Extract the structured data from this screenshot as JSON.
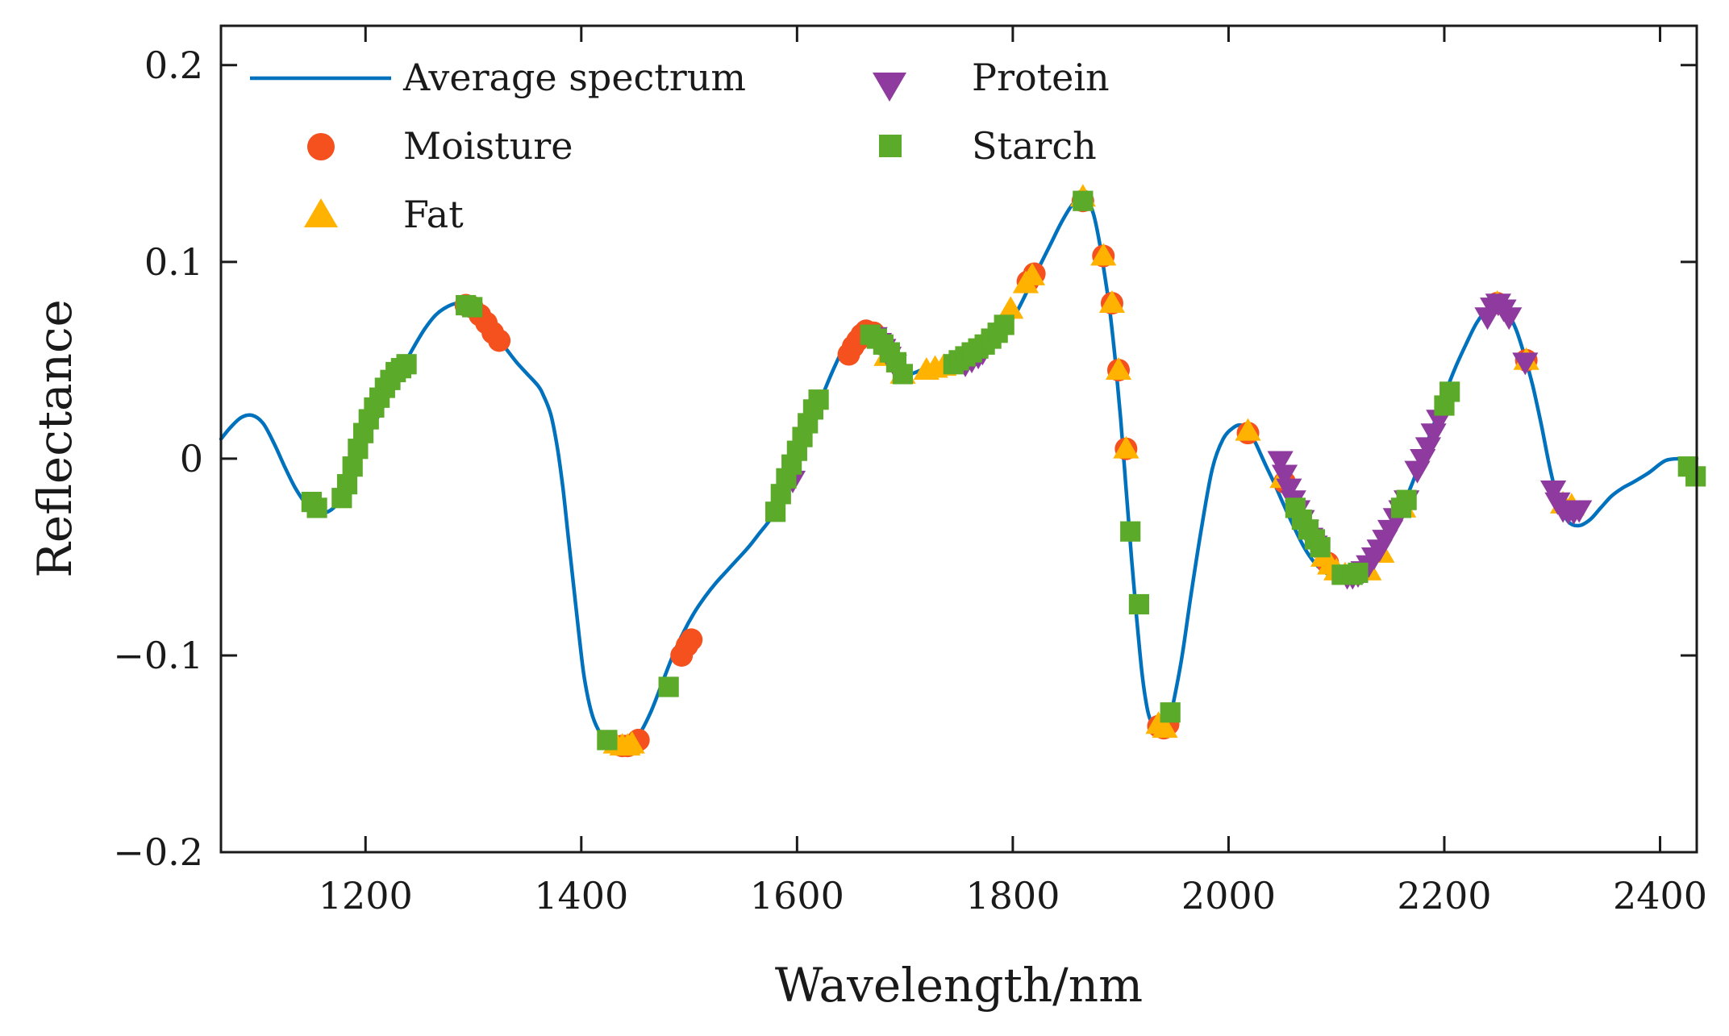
{
  "chart_data": {
    "type": "line+scatter",
    "title": "",
    "xlabel": "Wavelength/nm",
    "ylabel": "Reflectance",
    "xlim": [
      1066,
      2434
    ],
    "ylim": [
      -0.2,
      0.22
    ],
    "xticks": [
      1200,
      1400,
      1600,
      1800,
      2000,
      2200,
      2400
    ],
    "xtick_labels": [
      "1200",
      "1400",
      "1600",
      "1800",
      "2000",
      "2200",
      "2400"
    ],
    "yticks": [
      -0.2,
      -0.1,
      0,
      0.1,
      0.2
    ],
    "ytick_labels": [
      "−0.2",
      "−0.1",
      "0",
      "0.1",
      "0.2"
    ],
    "legend_position": "top-left",
    "series": [
      {
        "name": "Average spectrum",
        "kind": "line",
        "color": "#0072BD",
        "x": [
          1066,
          1075,
          1085,
          1095,
          1105,
          1115,
          1125,
          1135,
          1145,
          1155,
          1165,
          1175,
          1185,
          1195,
          1205,
          1215,
          1225,
          1235,
          1245,
          1255,
          1265,
          1275,
          1285,
          1292,
          1300,
          1310,
          1320,
          1330,
          1340,
          1350,
          1360,
          1365,
          1372,
          1378,
          1383,
          1388,
          1393,
          1398,
          1403,
          1410,
          1418,
          1425,
          1432,
          1440,
          1447,
          1455,
          1465,
          1475,
          1485,
          1495,
          1505,
          1515,
          1525,
          1535,
          1545,
          1555,
          1565,
          1575,
          1585,
          1595,
          1605,
          1615,
          1625,
          1635,
          1645,
          1655,
          1662,
          1668,
          1675,
          1682,
          1690,
          1697,
          1705,
          1715,
          1725,
          1735,
          1745,
          1755,
          1765,
          1775,
          1785,
          1795,
          1805,
          1815,
          1825,
          1835,
          1845,
          1855,
          1862,
          1866,
          1870,
          1875,
          1880,
          1885,
          1890,
          1895,
          1900,
          1905,
          1910,
          1915,
          1920,
          1925,
          1930,
          1935,
          1940,
          1945,
          1950,
          1957,
          1965,
          1975,
          1985,
          1995,
          2005,
          2012,
          2018,
          2025,
          2030,
          2035,
          2042,
          2050,
          2060,
          2070,
          2080,
          2090,
          2100,
          2108,
          2115,
          2122,
          2130,
          2140,
          2150,
          2160,
          2170,
          2180,
          2190,
          2200,
          2210,
          2220,
          2230,
          2240,
          2248,
          2254,
          2260,
          2267,
          2274,
          2282,
          2290,
          2298,
          2306,
          2315,
          2325,
          2335,
          2345,
          2355,
          2365,
          2375,
          2390,
          2405,
          2420,
          2434
        ],
        "y": [
          0.01,
          0.016,
          0.021,
          0.022,
          0.018,
          0.008,
          -0.004,
          -0.015,
          -0.023,
          -0.027,
          -0.027,
          -0.022,
          -0.011,
          0.001,
          0.014,
          0.025,
          0.036,
          0.047,
          0.057,
          0.066,
          0.073,
          0.077,
          0.079,
          0.078,
          0.075,
          0.07,
          0.063,
          0.056,
          0.049,
          0.043,
          0.037,
          0.032,
          0.022,
          0.005,
          -0.015,
          -0.04,
          -0.065,
          -0.09,
          -0.112,
          -0.13,
          -0.14,
          -0.144,
          -0.146,
          -0.146,
          -0.144,
          -0.139,
          -0.128,
          -0.114,
          -0.1,
          -0.088,
          -0.078,
          -0.07,
          -0.063,
          -0.057,
          -0.051,
          -0.045,
          -0.038,
          -0.031,
          -0.022,
          -0.01,
          0.005,
          0.02,
          0.034,
          0.047,
          0.058,
          0.064,
          0.066,
          0.064,
          0.058,
          0.051,
          0.045,
          0.043,
          0.043,
          0.045,
          0.047,
          0.048,
          0.049,
          0.05,
          0.052,
          0.055,
          0.06,
          0.067,
          0.076,
          0.087,
          0.098,
          0.109,
          0.12,
          0.129,
          0.132,
          0.133,
          0.131,
          0.124,
          0.111,
          0.094,
          0.075,
          0.05,
          0.02,
          -0.015,
          -0.05,
          -0.082,
          -0.11,
          -0.128,
          -0.136,
          -0.139,
          -0.138,
          -0.133,
          -0.121,
          -0.1,
          -0.07,
          -0.035,
          -0.005,
          0.01,
          0.016,
          0.017,
          0.014,
          0.008,
          0.002,
          -0.004,
          -0.012,
          -0.022,
          -0.034,
          -0.045,
          -0.053,
          -0.058,
          -0.06,
          -0.06,
          -0.059,
          -0.057,
          -0.053,
          -0.046,
          -0.037,
          -0.026,
          -0.013,
          0.002,
          0.017,
          0.032,
          0.046,
          0.058,
          0.069,
          0.076,
          0.078,
          0.077,
          0.073,
          0.065,
          0.053,
          0.037,
          0.017,
          -0.005,
          -0.022,
          -0.032,
          -0.034,
          -0.031,
          -0.025,
          -0.019,
          -0.015,
          -0.012,
          -0.007,
          -0.001,
          0.0,
          0.0
        ]
      },
      {
        "name": "Moisture",
        "kind": "scatter",
        "marker": "circle",
        "color": "#F4511E",
        "x": [
          1293,
          1299,
          1306,
          1312,
          1318,
          1324,
          1438,
          1443,
          1449,
          1453,
          1493,
          1498,
          1502,
          1648,
          1652,
          1656,
          1660,
          1664,
          1671,
          1814,
          1820,
          1865,
          1884,
          1892,
          1898,
          1905,
          1935,
          1940,
          1944,
          2018,
          2052,
          2092,
          2249,
          2276
        ],
        "y": [
          0.078,
          0.077,
          0.073,
          0.069,
          0.064,
          0.06,
          -0.146,
          -0.146,
          -0.145,
          -0.143,
          -0.1,
          -0.095,
          -0.092,
          0.053,
          0.057,
          0.06,
          0.063,
          0.065,
          0.064,
          0.09,
          0.094,
          0.131,
          0.103,
          0.079,
          0.045,
          0.005,
          -0.136,
          -0.137,
          -0.135,
          0.013,
          -0.012,
          -0.053,
          0.079,
          0.05
        ]
      },
      {
        "name": "Fat",
        "kind": "scatter",
        "marker": "triangle-up",
        "color": "#FFB300",
        "x": [
          1432,
          1438,
          1443,
          1447,
          1683,
          1698,
          1720,
          1728,
          1736,
          1798,
          1812,
          1818,
          1865,
          1884,
          1892,
          1898,
          1905,
          1935,
          1941,
          2018,
          2050,
          2088,
          2094,
          2100,
          2108,
          2130,
          2142,
          2162,
          2249,
          2276,
          2310,
          2318
        ],
        "y": [
          -0.145,
          -0.146,
          -0.146,
          -0.145,
          0.052,
          0.043,
          0.045,
          0.046,
          0.047,
          0.076,
          0.089,
          0.093,
          0.133,
          0.103,
          0.079,
          0.045,
          0.005,
          -0.135,
          -0.137,
          0.014,
          -0.01,
          -0.05,
          -0.054,
          -0.057,
          -0.059,
          -0.057,
          -0.048,
          -0.025,
          0.079,
          0.05,
          -0.023,
          -0.024
        ]
      },
      {
        "name": "Protein",
        "kind": "scatter",
        "marker": "triangle-down",
        "color": "#8E3A9E",
        "x": [
          1596,
          1672,
          1676,
          1680,
          1685,
          1690,
          1756,
          1762,
          1768,
          1772,
          2048,
          2052,
          2056,
          2060,
          2064,
          2068,
          2072,
          2076,
          2080,
          2110,
          2115,
          2120,
          2125,
          2130,
          2135,
          2140,
          2145,
          2150,
          2155,
          2160,
          2165,
          2175,
          2180,
          2185,
          2190,
          2195,
          2240,
          2245,
          2250,
          2255,
          2260,
          2275,
          2301,
          2305,
          2310,
          2315,
          2320,
          2325
        ],
        "y": [
          -0.011,
          0.062,
          0.059,
          0.056,
          0.052,
          0.048,
          0.048,
          0.05,
          0.052,
          0.054,
          -0.001,
          -0.008,
          -0.015,
          -0.021,
          -0.026,
          -0.031,
          -0.036,
          -0.04,
          -0.044,
          -0.06,
          -0.06,
          -0.059,
          -0.057,
          -0.054,
          -0.05,
          -0.046,
          -0.041,
          -0.036,
          -0.03,
          -0.026,
          -0.021,
          -0.006,
          0.0,
          0.006,
          0.013,
          0.02,
          0.072,
          0.077,
          0.079,
          0.076,
          0.072,
          0.049,
          -0.016,
          -0.022,
          -0.026,
          -0.027,
          -0.027,
          -0.026
        ]
      },
      {
        "name": "Starch",
        "kind": "scatter",
        "marker": "square",
        "color": "#5BAA2A",
        "x": [
          1150,
          1155,
          1178,
          1183,
          1188,
          1193,
          1198,
          1203,
          1208,
          1213,
          1218,
          1223,
          1228,
          1233,
          1238,
          1293,
          1299,
          1424,
          1481,
          1580,
          1585,
          1590,
          1595,
          1600,
          1605,
          1610,
          1615,
          1620,
          1668,
          1674,
          1680,
          1686,
          1692,
          1698,
          1745,
          1750,
          1756,
          1762,
          1768,
          1774,
          1780,
          1786,
          1792,
          1865,
          1909,
          1917,
          1946,
          2062,
          2068,
          2074,
          2080,
          2085,
          2105,
          2110,
          2115,
          2120,
          2160,
          2165,
          2200,
          2205,
          2426,
          2433
        ],
        "y": [
          -0.022,
          -0.025,
          -0.02,
          -0.013,
          -0.004,
          0.005,
          0.013,
          0.02,
          0.026,
          0.031,
          0.036,
          0.04,
          0.044,
          0.046,
          0.048,
          0.078,
          0.077,
          -0.143,
          -0.116,
          -0.027,
          -0.018,
          -0.01,
          -0.003,
          0.004,
          0.011,
          0.018,
          0.025,
          0.03,
          0.063,
          0.061,
          0.058,
          0.054,
          0.049,
          0.043,
          0.048,
          0.05,
          0.052,
          0.054,
          0.056,
          0.058,
          0.061,
          0.064,
          0.068,
          0.131,
          -0.037,
          -0.074,
          -0.129,
          -0.025,
          -0.031,
          -0.036,
          -0.041,
          -0.045,
          -0.059,
          -0.059,
          -0.059,
          -0.058,
          -0.025,
          -0.021,
          0.027,
          0.034,
          -0.004,
          -0.009
        ]
      }
    ]
  }
}
